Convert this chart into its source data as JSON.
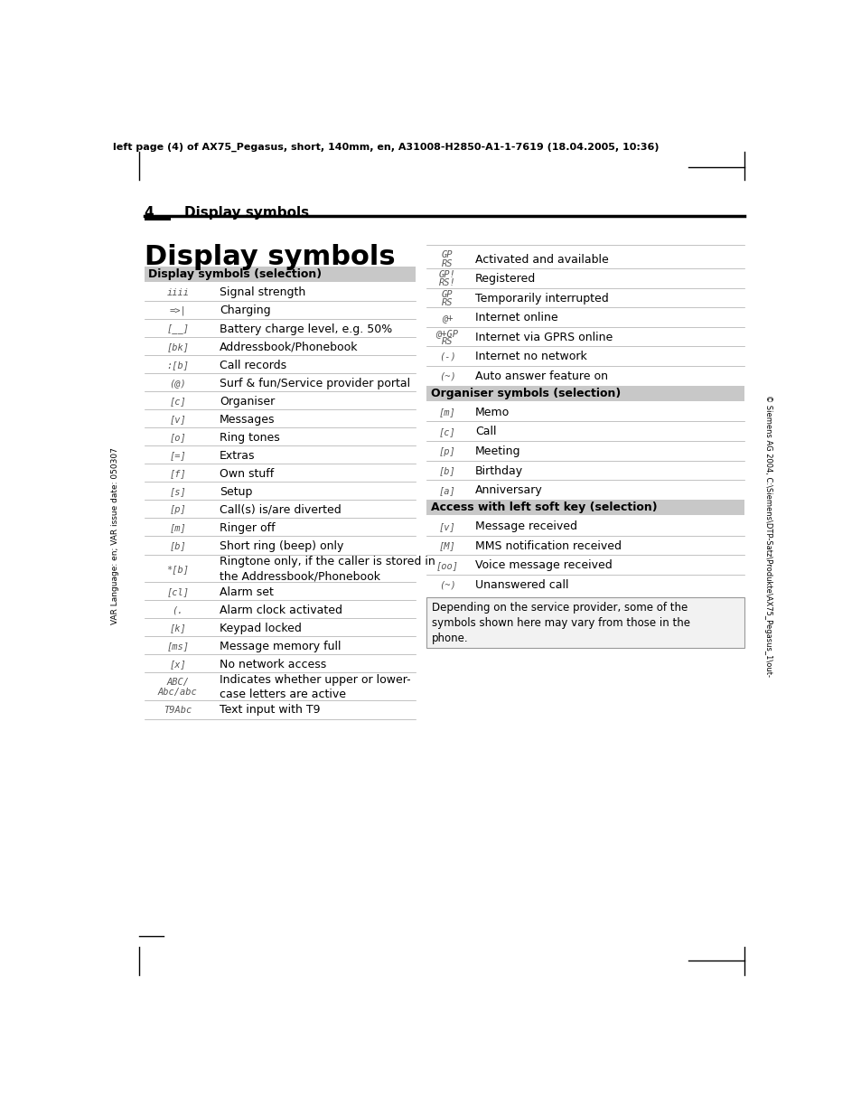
{
  "header_text": "left page (4) of AX75_Pegasus, short, 140mm, en, A31008-H2850-A1-1-7619 (18.04.2005, 10:36)",
  "page_number": "4",
  "page_title_section": "Display symbols",
  "main_title": "Display symbols",
  "sidebar_text": "VAR Language: en; VAR issue date: 050307",
  "copyright_text": "© Siemens AG 2004, C:\\Siemens\\DTP-Satz\\Produkte\\AX75_Pegasus_1\\out-",
  "left_section_header": "Display symbols (selection)",
  "right_section2_header": "Organiser symbols (selection)",
  "right_section3_header": "Access with left soft key (selection)",
  "note_text": "Depending on the service provider, some of the\nsymbols shown here may vary from those in the\nphone.",
  "bg_color": "#ffffff",
  "section_header_bg": "#c8c8c8",
  "text_color": "#000000",
  "left_rows": [
    [
      "iiii",
      "Signal strength",
      false
    ],
    [
      "=>|",
      "Charging",
      false
    ],
    [
      "[__]",
      "Battery charge level, e.g. 50%",
      false
    ],
    [
      "[bk]",
      "Addressbook/Phonebook",
      false
    ],
    [
      ":[b]",
      "Call records",
      false
    ],
    [
      "(@)",
      "Surf & fun/Service provider portal",
      false
    ],
    [
      "[c]",
      "Organiser",
      false
    ],
    [
      "[v]",
      "Messages",
      false
    ],
    [
      "[o]",
      "Ring tones",
      false
    ],
    [
      "[=]",
      "Extras",
      false
    ],
    [
      "[f]",
      "Own stuff",
      false
    ],
    [
      "[s]",
      "Setup",
      false
    ],
    [
      "[p]",
      "Call(s) is/are diverted",
      false
    ],
    [
      "[m]",
      "Ringer off",
      false
    ],
    [
      "[b]",
      "Short ring (beep) only",
      false
    ],
    [
      "*[b]",
      "Ringtone only, if the caller is stored in\nthe Addressbook/Phonebook",
      true
    ],
    [
      "[cl]",
      "Alarm set",
      false
    ],
    [
      "(.",
      "Alarm clock activated",
      false
    ],
    [
      "[k]",
      "Keypad locked",
      false
    ],
    [
      "[ms]",
      "Message memory full",
      false
    ],
    [
      "[x]",
      "No network access",
      false
    ],
    [
      "ABC/\nAbc/abc",
      "Indicates whether upper or lower-\ncase letters are active",
      true
    ],
    [
      "T9Abc",
      "Text input with T9",
      false
    ]
  ],
  "right_rows1": [
    [
      "GP\nRS",
      "Activated and available"
    ],
    [
      "GP!\nRS!",
      "Registered"
    ],
    [
      "GP\nRS",
      "Temporarily interrupted"
    ],
    [
      "@+",
      "Internet online"
    ],
    [
      "@+GP\nRS",
      "Internet via GPRS online"
    ],
    [
      "(-)",
      "Internet no network"
    ],
    [
      "(~)",
      "Auto answer feature on"
    ]
  ],
  "right_rows2": [
    [
      "[m]",
      "Memo"
    ],
    [
      "[c]",
      "Call"
    ],
    [
      "[p]",
      "Meeting"
    ],
    [
      "[b]",
      "Birthday"
    ],
    [
      "[a]",
      "Anniversary"
    ]
  ],
  "right_rows3": [
    [
      "[v]",
      "Message received"
    ],
    [
      "[M]",
      "MMS notification received"
    ],
    [
      "[oo]",
      "Voice message received"
    ],
    [
      "(~)",
      "Unanswered call"
    ]
  ]
}
